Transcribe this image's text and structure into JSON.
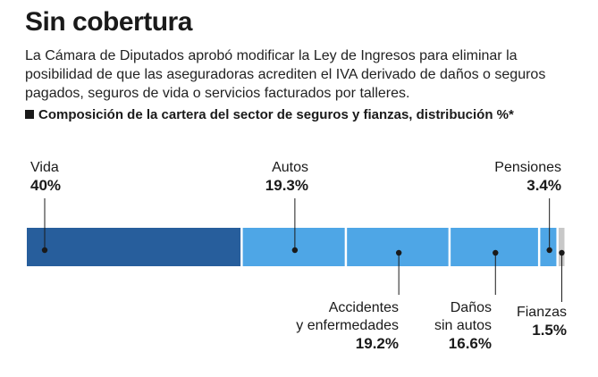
{
  "title": "Sin cobertura",
  "description": "La Cámara de Diputados aprobó modificar la Ley de Ingresos para eliminar la posibilidad de que las aseguradoras acrediten el IVA derivado de daños o seguros pagados, seguros de vida o servicios facturados por talleres.",
  "subtitle": "Composición de la cartera del sector de seguros y fianzas, distribución %*",
  "chart_data": {
    "type": "bar",
    "orientation": "horizontal-stacked",
    "title": "Composición de la cartera del sector de seguros y fianzas, distribución %*",
    "categories": [
      "Vida",
      "Autos",
      "Accidentes y enfermedades",
      "Daños sin autos",
      "Pensiones",
      "Fianzas"
    ],
    "values": [
      40,
      19.3,
      19.2,
      16.6,
      3.4,
      1.5
    ],
    "value_labels": [
      "40%",
      "19.3%",
      "19.2%",
      "16.6%",
      "3.4%",
      "1.5%"
    ],
    "label_lines": [
      [
        "Vida"
      ],
      [
        "Autos"
      ],
      [
        "Accidentes",
        "y enfermedades"
      ],
      [
        "Daños",
        "sin autos"
      ],
      [
        "Pensiones"
      ],
      [
        "Fianzas"
      ]
    ],
    "colors": [
      "#275e9c",
      "#4ea6e6",
      "#4ea6e6",
      "#4ea6e6",
      "#4ea6e6",
      "#c8c8c8"
    ]
  }
}
